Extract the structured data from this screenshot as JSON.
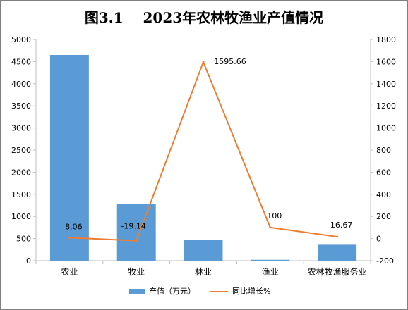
{
  "chart_data": {
    "type": "bar",
    "title": "图3.1    2023年农林牧渔业产值情况",
    "categories": [
      "农业",
      "牧业",
      "林业",
      "渔业",
      "农林牧渔服务业"
    ],
    "series": [
      {
        "name": "产值（万元）",
        "type": "bar",
        "axis": "left",
        "values": [
          4650,
          1280,
          470,
          20,
          360
        ],
        "color": "#5b9bd5"
      },
      {
        "name": "同比增长%",
        "type": "line",
        "axis": "right",
        "values": [
          8.06,
          -19.14,
          1595.66,
          100,
          16.67
        ],
        "labels": [
          "8.06",
          "-19.14",
          "1595.66",
          "100",
          "16.67"
        ],
        "color": "#ed7d31"
      }
    ],
    "y_left": {
      "min": 0,
      "max": 5000,
      "step": 500,
      "ticks": [
        "0",
        "500",
        "1000",
        "1500",
        "2000",
        "2500",
        "3000",
        "3500",
        "4000",
        "4500",
        "5000"
      ]
    },
    "y_right": {
      "min": -200,
      "max": 1800,
      "step": 200,
      "ticks": [
        "-200",
        "0",
        "200",
        "400",
        "600",
        "800",
        "1000",
        "1200",
        "1400",
        "1600",
        "1800"
      ]
    },
    "grid": false,
    "legend": "bottom"
  }
}
